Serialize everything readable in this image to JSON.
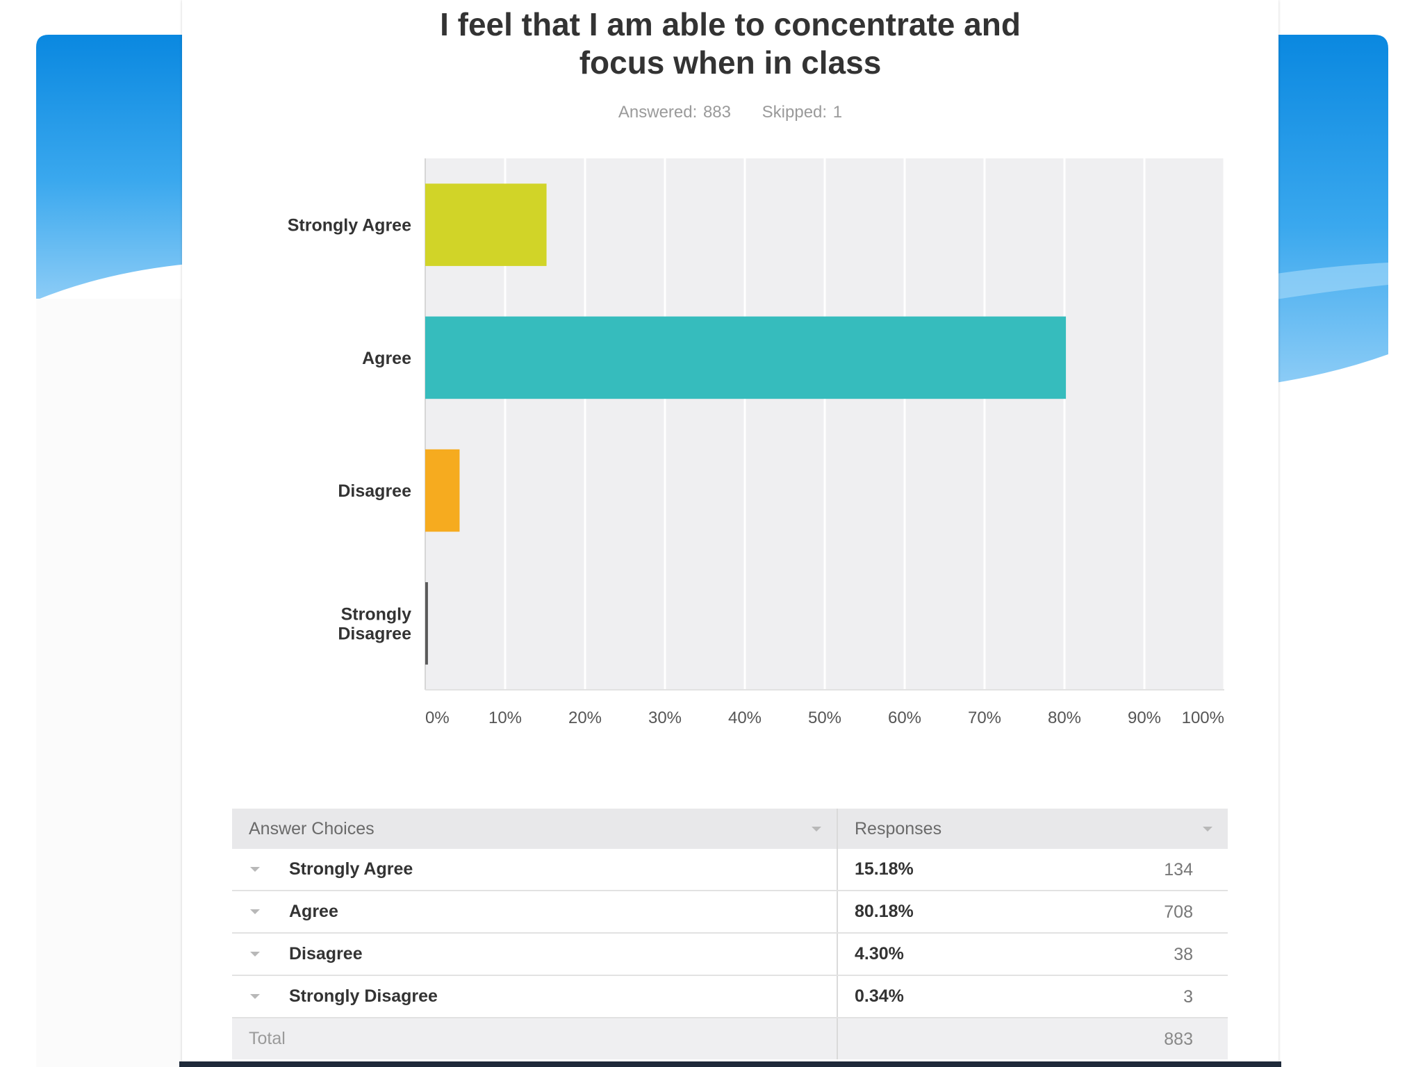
{
  "question": {
    "title_line1": "I feel that I am able to concentrate and",
    "title_line2": "focus when in class",
    "answered": "Answered: 883",
    "skipped": "Skipped: 1"
  },
  "colors": {
    "strongly_agree": "#d1d428",
    "agree": "#36bcbd",
    "disagree": "#f6ab1f",
    "strongly_disagree": "#5a5a5a",
    "plot_bg": "#efeff1",
    "slide_blue": "#1a96e6"
  },
  "chart_data": {
    "type": "bar",
    "orientation": "horizontal",
    "title": "I feel that I am able to concentrate and focus when in class",
    "categories": [
      "Strongly Agree",
      "Agree",
      "Disagree",
      "Strongly Disagree"
    ],
    "category_label_lines": [
      [
        "Strongly Agree"
      ],
      [
        "Agree"
      ],
      [
        "Disagree"
      ],
      [
        "Strongly",
        "Disagree"
      ]
    ],
    "values": [
      15.18,
      80.18,
      4.3,
      0.34
    ],
    "xlim": [
      0,
      100
    ],
    "x_ticks": [
      "0%",
      "10%",
      "20%",
      "30%",
      "40%",
      "50%",
      "60%",
      "70%",
      "80%",
      "90%",
      "100%"
    ],
    "grid": true,
    "legend": "none"
  },
  "table": {
    "headers": [
      "Answer Choices",
      "Responses"
    ],
    "rows": [
      {
        "choice": "Strongly Agree",
        "percent": "15.18%",
        "count": "134"
      },
      {
        "choice": "Agree",
        "percent": "80.18%",
        "count": "708"
      },
      {
        "choice": "Disagree",
        "percent": "4.30%",
        "count": "38"
      },
      {
        "choice": "Strongly Disagree",
        "percent": "0.34%",
        "count": "3"
      }
    ],
    "total_label": "Total",
    "total_count": "883"
  }
}
